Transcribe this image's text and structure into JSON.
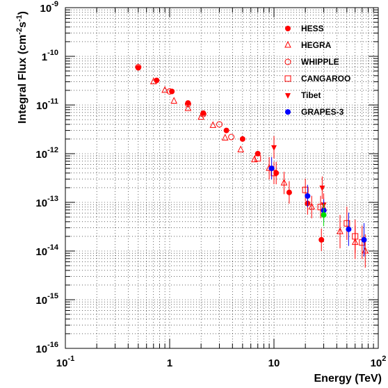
{
  "chart_data": {
    "type": "scatter",
    "xlabel": "Energy (TeV)",
    "ylabel_base": "Integral Flux (cm",
    "ylabel_exp1": "-2",
    "ylabel_mid": "s",
    "ylabel_exp2": "-1",
    "ylabel_end": ")",
    "xscale": "log",
    "yscale": "log",
    "xlim": [
      0.1,
      100
    ],
    "ylim": [
      1e-16,
      1e-09
    ],
    "grid": true,
    "legend_position": "top-right",
    "x_ticks": [
      {
        "value": 0.1,
        "base": "10",
        "exp": "-1"
      },
      {
        "value": 1,
        "base": "1",
        "exp": ""
      },
      {
        "value": 10,
        "base": "10",
        "exp": ""
      },
      {
        "value": 100,
        "base": "10",
        "exp": "2"
      }
    ],
    "y_ticks": [
      {
        "value": 1e-09,
        "base": "10",
        "exp": "-9"
      },
      {
        "value": 1e-10,
        "base": "1",
        "exp": "-10"
      },
      {
        "value": 1e-11,
        "base": "10",
        "exp": "-11"
      },
      {
        "value": 1e-12,
        "base": "10",
        "exp": "-12"
      },
      {
        "value": 1e-13,
        "base": "10",
        "exp": "-13"
      },
      {
        "value": 1e-14,
        "base": "10",
        "exp": "-14"
      },
      {
        "value": 1e-15,
        "base": "10",
        "exp": "-15"
      },
      {
        "value": 1e-16,
        "base": "10",
        "exp": "-16"
      }
    ],
    "series": [
      {
        "name": "HESS",
        "marker": "filled-circle",
        "color": "#ff0000",
        "points": [
          [
            0.5,
            5.8e-11
          ],
          [
            0.75,
            3.2e-11
          ],
          [
            1.05,
            1.9e-11
          ],
          [
            1.5,
            1.1e-11
          ],
          [
            2.1,
            6.8e-12
          ],
          [
            3.5,
            3e-12
          ],
          [
            5.0,
            2e-12
          ],
          [
            7.0,
            1e-12
          ],
          [
            10.5,
            4e-13
          ],
          [
            14.0,
            1.6e-13
          ],
          [
            21.0,
            9.5e-14
          ],
          [
            28.5,
            1.7e-14
          ]
        ]
      },
      {
        "name": "HEGRA",
        "marker": "open-triangle",
        "color": "#ff0000",
        "points": [
          [
            0.7,
            3e-11
          ],
          [
            0.9,
            2e-11
          ],
          [
            1.1,
            1.2e-11
          ],
          [
            1.5,
            8.5e-12
          ],
          [
            2.0,
            5.6e-12
          ],
          [
            2.6,
            3.8e-12
          ],
          [
            3.4,
            2.1e-12
          ],
          [
            4.8,
            1.2e-12
          ],
          [
            6.5,
            7.5e-13
          ],
          [
            9.0,
            5e-13
          ],
          [
            12.5,
            2.5e-13
          ],
          [
            23.0,
            8e-14
          ],
          [
            30.0,
            7.5e-14
          ],
          [
            43.0,
            2.5e-14
          ],
          [
            60.0,
            1.5e-14
          ],
          [
            75.0,
            1e-14
          ]
        ]
      },
      {
        "name": "WHIPPLE",
        "marker": "open-circle",
        "color": "#ff0000",
        "points": [
          [
            0.5,
            6e-11
          ],
          [
            1.0,
            1.9e-11
          ],
          [
            1.5,
            1.05e-11
          ],
          [
            2.1,
            6.5e-12
          ],
          [
            3.0,
            4e-12
          ],
          [
            3.9,
            2.2e-12
          ]
        ]
      },
      {
        "name": "CANGAROO",
        "marker": "open-square",
        "color": "#ff0000",
        "points": [
          [
            7.0,
            8e-13
          ],
          [
            10.0,
            4e-13
          ],
          [
            20.0,
            1.8e-13
          ],
          [
            28.0,
            8e-14
          ],
          [
            50.0,
            3.7e-14
          ],
          [
            60.0,
            2e-14
          ],
          [
            70.0,
            1.5e-14
          ]
        ]
      },
      {
        "name": "Tibet",
        "marker": "filled-triangle-down",
        "color": "#ff0000",
        "points": [
          [
            10.0,
            1.35e-12
          ],
          [
            29.0,
            2e-13
          ],
          [
            30.0,
            9e-14
          ]
        ]
      },
      {
        "name": "GRAPES-3",
        "marker": "filled-circle",
        "color": "#0000ff",
        "points": [
          [
            9.5,
            5e-13
          ],
          [
            21.0,
            1.35e-13
          ],
          [
            30.0,
            6.8e-14
          ],
          [
            52.0,
            2.8e-14
          ],
          [
            73.0,
            1.7e-14
          ]
        ]
      },
      {
        "name": "",
        "marker": "filled-circle",
        "color": "#00dd00",
        "in_legend": false,
        "points": [
          [
            30.0,
            5.5e-14
          ]
        ]
      }
    ]
  }
}
